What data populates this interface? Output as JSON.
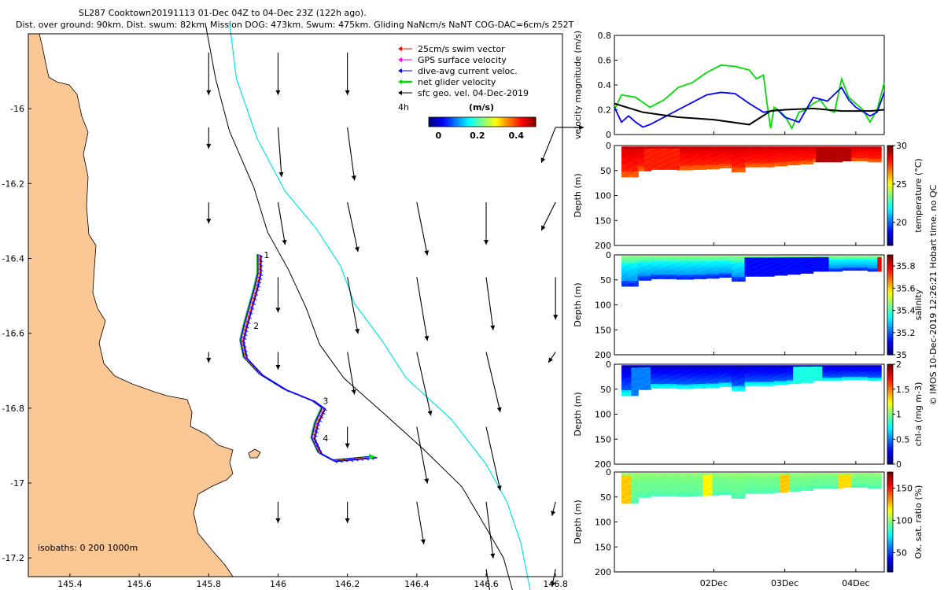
{
  "header": {
    "line1": "SL287 Cooktown20191113 01-Dec 04Z to 04-Dec 23Z (122h ago).",
    "line2": "Dist. over ground: 90km. Dist. swum: 82km. Mission DOG: 473km. Swum: 475km. Gliding NaNcm/s NaNT COG-DAC=6cm/s 252T"
  },
  "credit": "© IMOS 10-Dec-2019 12:26:21 Hobart time. no QC",
  "colors": {
    "land": "#fbc794",
    "isobath_200": "#000000",
    "isobath_1000": "#00e5ee",
    "track_blue": "#0000ff",
    "track_green": "#00dd00",
    "gps_magenta": "#ff00ff",
    "swim_red": "#ff0000"
  },
  "chart_data": [
    {
      "type": "scatter",
      "name": "map",
      "x_ticks": [
        "145.4",
        "145.6",
        "145.8",
        "146",
        "146.2",
        "146.4",
        "146.6",
        "146.8"
      ],
      "y_ticks": [
        "-16",
        "-16.2",
        "-16.4",
        "-16.6",
        "-16.8",
        "-17",
        "-17.2"
      ],
      "xlim": [
        145.28,
        146.82
      ],
      "ylim": [
        -17.25,
        -15.8
      ],
      "isobath_note": "isobaths: 0   200  1000m",
      "legend": {
        "items": [
          {
            "label": "25cm/s swim vector",
            "color": "#ff0000"
          },
          {
            "label": "GPS surface velocity",
            "color": "#ff00ff"
          },
          {
            "label": "dive-avg current veloc.",
            "color": "#0000ff"
          },
          {
            "label": "net glider velocity",
            "color": "#00dd00"
          },
          {
            "label": "sfc geo. vel. 04-Dec-2019",
            "color": "#000000"
          }
        ],
        "side_label": "4h",
        "colorbar_title": "(m/s)",
        "colorbar_ticks": [
          "0",
          "0.2",
          "0.4"
        ],
        "colorbar_range": [
          -0.05,
          0.5
        ]
      },
      "waypoints": [
        {
          "label": "1",
          "lon": 145.95,
          "lat": -16.39
        },
        {
          "label": "2",
          "lon": 145.92,
          "lat": -16.58
        },
        {
          "label": "3",
          "lon": 146.12,
          "lat": -16.78
        },
        {
          "label": "4",
          "lon": 146.12,
          "lat": -16.88
        }
      ],
      "track": [
        [
          145.945,
          -16.39
        ],
        [
          145.945,
          -16.44
        ],
        [
          145.935,
          -16.48
        ],
        [
          145.92,
          -16.53
        ],
        [
          145.905,
          -16.58
        ],
        [
          145.895,
          -16.62
        ],
        [
          145.905,
          -16.665
        ],
        [
          145.95,
          -16.71
        ],
        [
          146.02,
          -16.75
        ],
        [
          146.1,
          -16.78
        ],
        [
          146.13,
          -16.8
        ],
        [
          146.11,
          -16.84
        ],
        [
          146.1,
          -16.88
        ],
        [
          146.12,
          -16.92
        ],
        [
          146.16,
          -16.94
        ],
        [
          146.22,
          -16.935
        ],
        [
          146.28,
          -16.93
        ]
      ],
      "isobath_200": [
        [
          145.79,
          -15.77
        ],
        [
          145.82,
          -15.92
        ],
        [
          145.86,
          -16.06
        ],
        [
          145.93,
          -16.21
        ],
        [
          145.97,
          -16.33
        ],
        [
          146.03,
          -16.43
        ],
        [
          146.08,
          -16.53
        ],
        [
          146.12,
          -16.63
        ],
        [
          146.19,
          -16.72
        ],
        [
          146.3,
          -16.81
        ],
        [
          146.42,
          -16.91
        ],
        [
          146.53,
          -17.01
        ],
        [
          146.6,
          -17.12
        ],
        [
          146.65,
          -17.2
        ],
        [
          146.68,
          -17.3
        ]
      ],
      "isobath_1000": [
        [
          145.86,
          -15.77
        ],
        [
          145.88,
          -15.92
        ],
        [
          145.94,
          -16.08
        ],
        [
          146.02,
          -16.22
        ],
        [
          146.11,
          -16.32
        ],
        [
          146.18,
          -16.42
        ],
        [
          146.22,
          -16.52
        ],
        [
          146.3,
          -16.62
        ],
        [
          146.37,
          -16.72
        ],
        [
          146.5,
          -16.83
        ],
        [
          146.6,
          -16.95
        ],
        [
          146.66,
          -17.05
        ],
        [
          146.7,
          -17.16
        ],
        [
          146.73,
          -17.3
        ]
      ],
      "geostrophic_vectors": [
        {
          "lon": 145.8,
          "lat": -15.85,
          "u": 0.0,
          "v": -0.12
        },
        {
          "lon": 146.0,
          "lat": -15.85,
          "u": 0.0,
          "v": -0.12
        },
        {
          "lon": 146.2,
          "lat": -15.85,
          "u": 0.0,
          "v": -0.12
        },
        {
          "lon": 146.8,
          "lat": -16.05,
          "u": 0.08,
          "v": -0.0
        },
        {
          "lon": 145.8,
          "lat": -16.05,
          "u": 0.0,
          "v": -0.06
        },
        {
          "lon": 146.0,
          "lat": -16.05,
          "u": 0.01,
          "v": -0.14
        },
        {
          "lon": 146.2,
          "lat": -16.05,
          "u": 0.02,
          "v": -0.15
        },
        {
          "lon": 146.8,
          "lat": -16.05,
          "u": -0.04,
          "v": -0.1
        },
        {
          "lon": 145.8,
          "lat": -16.25,
          "u": 0.0,
          "v": -0.06
        },
        {
          "lon": 146.0,
          "lat": -16.25,
          "u": 0.02,
          "v": -0.12
        },
        {
          "lon": 146.2,
          "lat": -16.25,
          "u": 0.03,
          "v": -0.14
        },
        {
          "lon": 146.4,
          "lat": -16.25,
          "u": 0.03,
          "v": -0.15
        },
        {
          "lon": 146.6,
          "lat": -16.25,
          "u": 0.0,
          "v": -0.12
        },
        {
          "lon": 146.8,
          "lat": -16.25,
          "u": -0.04,
          "v": -0.08
        },
        {
          "lon": 146.0,
          "lat": -16.45,
          "u": 0.0,
          "v": -0.1
        },
        {
          "lon": 146.2,
          "lat": -16.45,
          "u": 0.03,
          "v": -0.16
        },
        {
          "lon": 146.4,
          "lat": -16.45,
          "u": 0.03,
          "v": -0.18
        },
        {
          "lon": 146.6,
          "lat": -16.45,
          "u": 0.02,
          "v": -0.15
        },
        {
          "lon": 146.8,
          "lat": -16.45,
          "u": 0.0,
          "v": -0.12
        },
        {
          "lon": 145.8,
          "lat": -16.65,
          "u": 0.0,
          "v": -0.03
        },
        {
          "lon": 146.0,
          "lat": -16.65,
          "u": 0.0,
          "v": -0.05
        },
        {
          "lon": 146.2,
          "lat": -16.65,
          "u": 0.02,
          "v": -0.12
        },
        {
          "lon": 146.4,
          "lat": -16.65,
          "u": 0.04,
          "v": -0.18
        },
        {
          "lon": 146.6,
          "lat": -16.65,
          "u": 0.04,
          "v": -0.17
        },
        {
          "lon": 146.8,
          "lat": -16.65,
          "u": -0.02,
          "v": -0.03
        },
        {
          "lon": 146.2,
          "lat": -16.85,
          "u": 0.0,
          "v": -0.06
        },
        {
          "lon": 146.4,
          "lat": -16.85,
          "u": 0.03,
          "v": -0.16
        },
        {
          "lon": 146.6,
          "lat": -16.85,
          "u": 0.04,
          "v": -0.18
        },
        {
          "lon": 146.0,
          "lat": -17.05,
          "u": 0.0,
          "v": -0.06
        },
        {
          "lon": 146.2,
          "lat": -17.05,
          "u": 0.0,
          "v": -0.06
        },
        {
          "lon": 146.4,
          "lat": -17.05,
          "u": 0.02,
          "v": -0.12
        },
        {
          "lon": 146.6,
          "lat": -17.05,
          "u": 0.02,
          "v": -0.16
        },
        {
          "lon": 146.8,
          "lat": -17.05,
          "u": -0.01,
          "v": -0.04
        },
        {
          "lon": 146.6,
          "lat": -17.23,
          "u": 0.02,
          "v": -0.12
        },
        {
          "lon": 146.8,
          "lat": -17.23,
          "u": -0.01,
          "v": -0.05
        }
      ]
    },
    {
      "type": "line",
      "name": "velocity",
      "ylabel": "velocity magnitude (m/s)",
      "ylim": [
        0,
        0.8
      ],
      "y_ticks": [
        "0",
        "0.2",
        "0.4",
        "0.6",
        "0.8"
      ],
      "x_range_days": [
        0.6,
        4.4
      ],
      "x_ticks": [
        {
          "day": 2,
          "label": "02Dec"
        },
        {
          "day": 3,
          "label": "03Dec"
        },
        {
          "day": 4,
          "label": "04Dec"
        }
      ],
      "series": [
        {
          "color": "#00dd00",
          "x": [
            0.6,
            0.7,
            0.9,
            1.1,
            1.3,
            1.5,
            1.7,
            1.9,
            2.1,
            2.3,
            2.5,
            2.6,
            2.7,
            2.75,
            2.8,
            2.85,
            2.9,
            3.0,
            3.1,
            3.2,
            3.3,
            3.4,
            3.5,
            3.6,
            3.7,
            3.8,
            3.9,
            4.0,
            4.1,
            4.2,
            4.3,
            4.4
          ],
          "y": [
            0.2,
            0.32,
            0.3,
            0.22,
            0.28,
            0.38,
            0.42,
            0.5,
            0.56,
            0.55,
            0.52,
            0.45,
            0.48,
            0.25,
            0.05,
            0.22,
            0.2,
            0.15,
            0.05,
            0.18,
            0.2,
            0.25,
            0.28,
            0.2,
            0.18,
            0.45,
            0.3,
            0.25,
            0.2,
            0.1,
            0.2,
            0.42
          ]
        },
        {
          "color": "#0000ff",
          "x": [
            0.6,
            0.7,
            0.8,
            0.9,
            1.0,
            1.1,
            1.3,
            1.5,
            1.7,
            1.9,
            2.1,
            2.3,
            2.5,
            2.7,
            2.9,
            3.0,
            3.2,
            3.4,
            3.6,
            3.8,
            3.9,
            4.0,
            4.2,
            4.3,
            4.4
          ],
          "y": [
            0.22,
            0.1,
            0.15,
            0.1,
            0.06,
            0.08,
            0.14,
            0.2,
            0.26,
            0.32,
            0.34,
            0.33,
            0.25,
            0.18,
            0.2,
            0.14,
            0.1,
            0.3,
            0.27,
            0.38,
            0.28,
            0.22,
            0.15,
            0.18,
            0.34
          ]
        },
        {
          "color": "#000000",
          "x": [
            0.6,
            1.0,
            1.5,
            2.0,
            2.5,
            2.8,
            3.0,
            3.4,
            3.8,
            4.2,
            4.4
          ],
          "y": [
            0.25,
            0.18,
            0.14,
            0.12,
            0.08,
            0.19,
            0.2,
            0.21,
            0.19,
            0.19,
            0.2
          ]
        }
      ]
    },
    {
      "type": "heatmap",
      "name": "temperature",
      "clabel": "temperature (°C)",
      "ylabel": "Depth (m)",
      "ylim": [
        200,
        0
      ],
      "y_ticks": [
        "0",
        "50",
        "100",
        "150",
        "200"
      ],
      "clim": [
        17,
        30
      ],
      "c_ticks": [
        "20",
        "25",
        "30"
      ],
      "c_tick_values": [
        20,
        25,
        30
      ],
      "colormap": "jet",
      "base_value": 28.5,
      "surface_value": 29.0,
      "deep_value": 27.2,
      "patches": [
        {
          "day_start": 1.0,
          "day_end": 1.5,
          "value": 28.0
        },
        {
          "day_start": 3.4,
          "day_end": 3.9,
          "value": 29.3
        }
      ],
      "bottom_depth": [
        60,
        48,
        45,
        45,
        46,
        45,
        44,
        42,
        50,
        40,
        40,
        38,
        36,
        34,
        30,
        30,
        28,
        28,
        30
      ]
    },
    {
      "type": "heatmap",
      "name": "salinity",
      "clabel": "salinity",
      "ylabel": "Depth (m)",
      "ylim": [
        200,
        0
      ],
      "y_ticks": [
        "0",
        "50",
        "100",
        "150",
        "200"
      ],
      "clim": [
        35.0,
        35.9
      ],
      "c_ticks": [
        "35",
        "35.2",
        "35.4",
        "35.6",
        "35.8"
      ],
      "c_tick_values": [
        35.0,
        35.2,
        35.4,
        35.6,
        35.8
      ],
      "colormap": "jet",
      "base_value": 35.3,
      "surface_value": 35.45,
      "deep_value": 35.15,
      "patches": [
        {
          "day_start": 2.4,
          "day_end": 3.6,
          "value": 35.12
        },
        {
          "day_start": 4.3,
          "day_end": 4.4,
          "value": 35.8
        }
      ],
      "bottom_depth": [
        60,
        48,
        45,
        45,
        46,
        45,
        44,
        42,
        50,
        40,
        40,
        38,
        36,
        34,
        30,
        30,
        28,
        28,
        30
      ]
    },
    {
      "type": "heatmap",
      "name": "chlorophyll",
      "clabel": "chl-a (mg m-3)",
      "ylabel": "Depth (m)",
      "ylim": [
        200,
        0
      ],
      "y_ticks": [
        "0",
        "50",
        "100",
        "150",
        "200"
      ],
      "clim": [
        0,
        2
      ],
      "c_ticks": [
        "0",
        "0.5",
        "1",
        "1.5",
        "2"
      ],
      "c_tick_values": [
        0,
        0.5,
        1,
        1.5,
        2
      ],
      "colormap": "jet",
      "base_value": 0.2,
      "surface_value": 0.12,
      "deep_value": 0.75,
      "patches": [
        {
          "day_start": 3.1,
          "day_end": 3.5,
          "value": 0.8
        },
        {
          "day_start": 0.8,
          "day_end": 1.1,
          "value": 0.5
        }
      ],
      "bottom_depth": [
        60,
        48,
        45,
        45,
        46,
        45,
        44,
        42,
        50,
        40,
        40,
        38,
        36,
        34,
        30,
        30,
        28,
        28,
        30
      ]
    },
    {
      "type": "heatmap",
      "name": "oxygen",
      "clabel": "Ox. sat. ratio (%)",
      "ylabel": "Depth (m)",
      "ylim": [
        200,
        0
      ],
      "y_ticks": [
        "0",
        "50",
        "100",
        "150",
        "200"
      ],
      "clim": [
        20,
        175
      ],
      "c_ticks": [
        "50",
        "100",
        "150"
      ],
      "c_tick_values": [
        50,
        100,
        150
      ],
      "colormap": "jet",
      "base_value": 95,
      "surface_value": 100,
      "deep_value": 90,
      "patches": [
        {
          "day_start": 0.7,
          "day_end": 0.8,
          "value": 125
        },
        {
          "day_start": 1.8,
          "day_end": 1.95,
          "value": 118
        },
        {
          "day_start": 2.9,
          "day_end": 3.05,
          "value": 125
        },
        {
          "day_start": 3.75,
          "day_end": 3.9,
          "value": 122
        }
      ],
      "bottom_depth": [
        60,
        48,
        45,
        45,
        46,
        45,
        44,
        42,
        50,
        40,
        40,
        38,
        36,
        34,
        30,
        30,
        28,
        28,
        30
      ]
    }
  ]
}
